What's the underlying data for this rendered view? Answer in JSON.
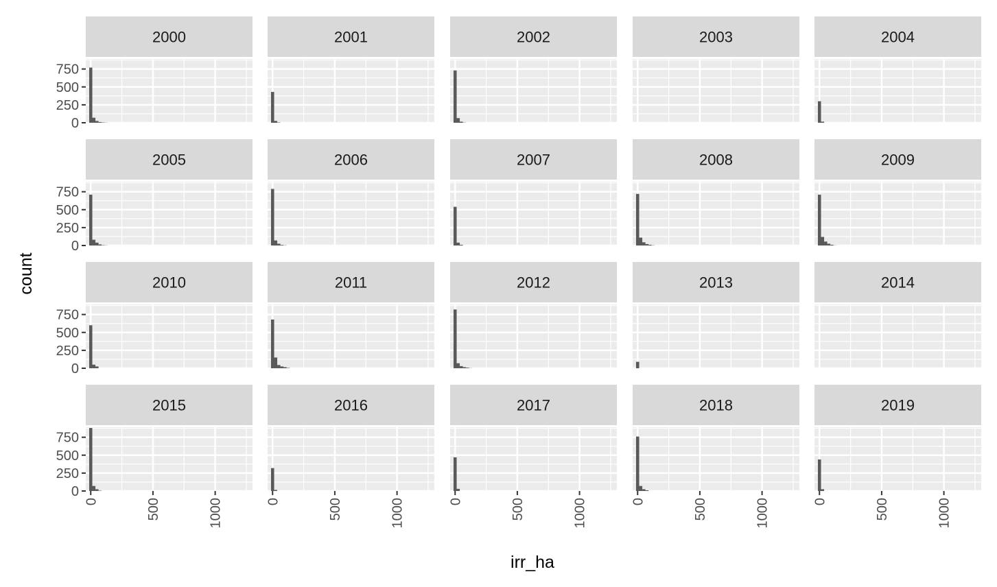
{
  "chart_data": {
    "type": "bar",
    "chart_kind": "histogram facet grid",
    "xlabel": "irr_ha",
    "ylabel": "count",
    "xlim": [
      -40,
      1300
    ],
    "ylim": [
      0,
      890
    ],
    "x_ticks": [
      0,
      500,
      1000
    ],
    "x_tick_labels": [
      "0",
      "500",
      "1000"
    ],
    "y_ticks": [
      0,
      250,
      500,
      750
    ],
    "y_tick_labels": [
      "0",
      "250",
      "500",
      "750"
    ],
    "bin_width": 25,
    "bin_centers": [
      0,
      25,
      50,
      75,
      100,
      125
    ],
    "grid": true,
    "legend": "none",
    "colors": {
      "panel_bg": "#ebebeb",
      "grid_major": "#ffffff",
      "strip_bg": "#d9d9d9",
      "bar": "#595959",
      "tick_text": "#4d4d4d"
    },
    "panels": [
      {
        "label": "2000",
        "counts": [
          770,
          70,
          25,
          10,
          5,
          2
        ]
      },
      {
        "label": "2001",
        "counts": [
          430,
          25,
          5,
          0,
          0,
          0
        ]
      },
      {
        "label": "2002",
        "counts": [
          730,
          65,
          15,
          3,
          0,
          0
        ]
      },
      {
        "label": "2003",
        "counts": [
          0,
          0,
          0,
          0,
          0,
          0
        ]
      },
      {
        "label": "2004",
        "counts": [
          300,
          15,
          0,
          0,
          0,
          0
        ]
      },
      {
        "label": "2005",
        "counts": [
          710,
          80,
          40,
          15,
          5,
          2
        ]
      },
      {
        "label": "2006",
        "counts": [
          790,
          70,
          25,
          8,
          3,
          0
        ]
      },
      {
        "label": "2007",
        "counts": [
          540,
          40,
          10,
          0,
          0,
          0
        ]
      },
      {
        "label": "2008",
        "counts": [
          720,
          110,
          45,
          20,
          10,
          3
        ]
      },
      {
        "label": "2009",
        "counts": [
          710,
          120,
          55,
          25,
          10,
          2
        ]
      },
      {
        "label": "2010",
        "counts": [
          600,
          50,
          25,
          0,
          0,
          0
        ]
      },
      {
        "label": "2011",
        "counts": [
          680,
          150,
          45,
          25,
          15,
          5
        ]
      },
      {
        "label": "2012",
        "counts": [
          820,
          70,
          30,
          15,
          8,
          2
        ]
      },
      {
        "label": "2013",
        "counts": [
          90,
          0,
          0,
          0,
          0,
          0
        ]
      },
      {
        "label": "2014",
        "counts": [
          0,
          0,
          0,
          0,
          0,
          0
        ]
      },
      {
        "label": "2015",
        "counts": [
          880,
          70,
          25,
          5,
          0,
          0
        ]
      },
      {
        "label": "2016",
        "counts": [
          320,
          15,
          0,
          0,
          0,
          0
        ]
      },
      {
        "label": "2017",
        "counts": [
          470,
          30,
          0,
          0,
          0,
          0
        ]
      },
      {
        "label": "2018",
        "counts": [
          760,
          70,
          25,
          10,
          0,
          0
        ]
      },
      {
        "label": "2019",
        "counts": [
          440,
          25,
          0,
          0,
          0,
          0
        ]
      }
    ]
  }
}
